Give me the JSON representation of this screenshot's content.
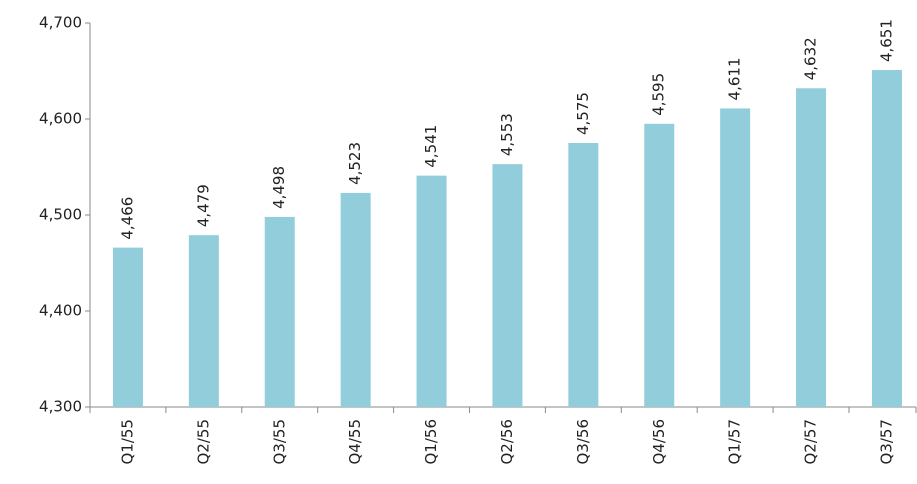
{
  "chart_data": {
    "type": "bar",
    "categories": [
      "Q1/55",
      "Q2/55",
      "Q3/55",
      "Q4/55",
      "Q1/56",
      "Q2/56",
      "Q3/56",
      "Q4/56",
      "Q1/57",
      "Q2/57",
      "Q3/57"
    ],
    "values": [
      4466,
      4479,
      4498,
      4523,
      4541,
      4553,
      4575,
      4595,
      4611,
      4632,
      4651
    ],
    "value_labels": [
      "4,466",
      "4,479",
      "4,498",
      "4,523",
      "4,541",
      "4,553",
      "4,575",
      "4,595",
      "4,611",
      "4,632",
      "4,651"
    ],
    "color": "#92cddc",
    "ylim": [
      4300,
      4700
    ],
    "yticks": [
      {
        "value": 4300,
        "label": "4,300"
      },
      {
        "value": 4400,
        "label": "4,400"
      },
      {
        "value": 4500,
        "label": "4,500"
      },
      {
        "value": 4600,
        "label": "4,600"
      },
      {
        "value": 4700,
        "label": "4,700"
      }
    ],
    "grid": false
  }
}
